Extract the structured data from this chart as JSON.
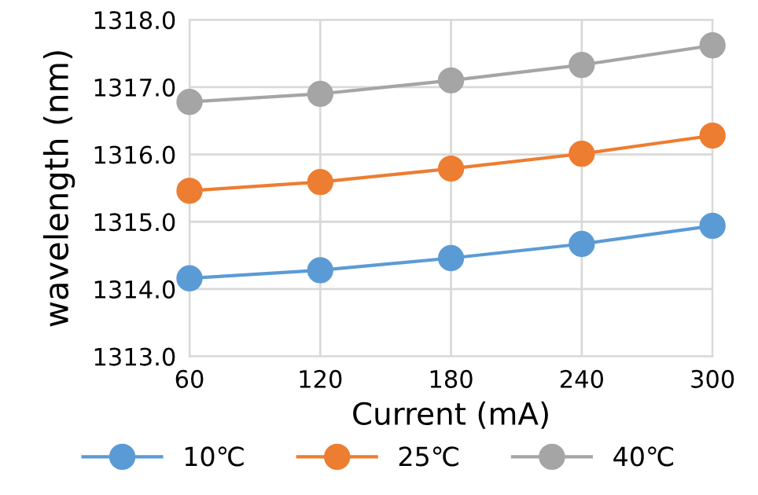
{
  "chart_data": {
    "type": "line",
    "xlabel": "Current (mA)",
    "ylabel": "wavelength (nm)",
    "x": [
      60,
      120,
      180,
      240,
      300
    ],
    "series": [
      {
        "name": "10℃",
        "color": "#5b9bd5",
        "values": [
          1314.16,
          1314.28,
          1314.46,
          1314.67,
          1314.94
        ]
      },
      {
        "name": "25℃",
        "color": "#ed7d31",
        "values": [
          1315.46,
          1315.59,
          1315.79,
          1316.01,
          1316.28
        ]
      },
      {
        "name": "40℃",
        "color": "#a5a5a5",
        "values": [
          1316.78,
          1316.9,
          1317.1,
          1317.33,
          1317.62
        ]
      }
    ],
    "xlim": [
      60,
      300
    ],
    "xticks": [
      60,
      120,
      180,
      240,
      300
    ],
    "ylim": [
      1313,
      1318
    ],
    "yticks": [
      {
        "value": 1313,
        "label": "1313.0"
      },
      {
        "value": 1314,
        "label": "1314.0"
      },
      {
        "value": 1315,
        "label": "1315.0"
      },
      {
        "value": 1316,
        "label": "1316.0"
      },
      {
        "value": 1317,
        "label": "1317.0"
      },
      {
        "value": 1318,
        "label": "1318.0"
      }
    ],
    "grid": true,
    "legend": "bottom",
    "marker": "circle",
    "line_style": "solid"
  }
}
